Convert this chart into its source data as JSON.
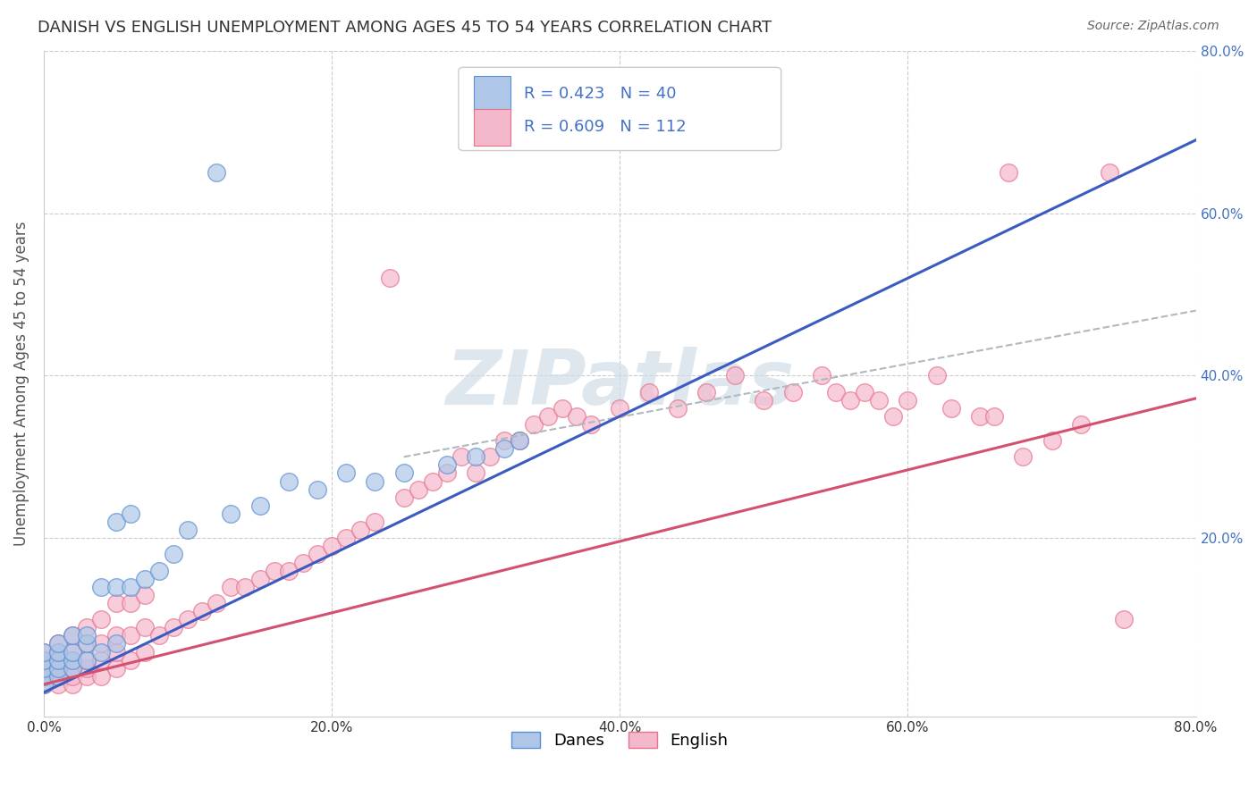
{
  "title": "DANISH VS ENGLISH UNEMPLOYMENT AMONG AGES 45 TO 54 YEARS CORRELATION CHART",
  "source": "Source: ZipAtlas.com",
  "ylabel": "Unemployment Among Ages 45 to 54 years",
  "xlim": [
    0.0,
    0.8
  ],
  "ylim": [
    -0.02,
    0.8
  ],
  "xtick_labels": [
    "0.0%",
    "20.0%",
    "40.0%",
    "60.0%",
    "80.0%"
  ],
  "xtick_vals": [
    0.0,
    0.2,
    0.4,
    0.6,
    0.8
  ],
  "ytick_right_labels": [
    "20.0%",
    "40.0%",
    "60.0%",
    "80.0%"
  ],
  "ytick_right_vals": [
    0.2,
    0.4,
    0.6,
    0.8
  ],
  "danes_fill_color": "#aec6e8",
  "english_fill_color": "#f4b8cc",
  "danes_edge_color": "#5b8fd4",
  "english_edge_color": "#e8728a",
  "danes_trend_color": "#3a5bbf",
  "english_trend_color": "#d45070",
  "dashed_trend_color": "#b0b8c0",
  "legend_label_danes": "Danes",
  "legend_label_english": "English",
  "R_danes": "0.423",
  "N_danes": "40",
  "R_english": "0.609",
  "N_english": "112",
  "background_color": "#ffffff",
  "grid_color": "#cccccc",
  "watermark_color": "#d0dce8",
  "title_fontsize": 13,
  "axis_label_fontsize": 12,
  "tick_fontsize": 11,
  "legend_fontsize": 13
}
